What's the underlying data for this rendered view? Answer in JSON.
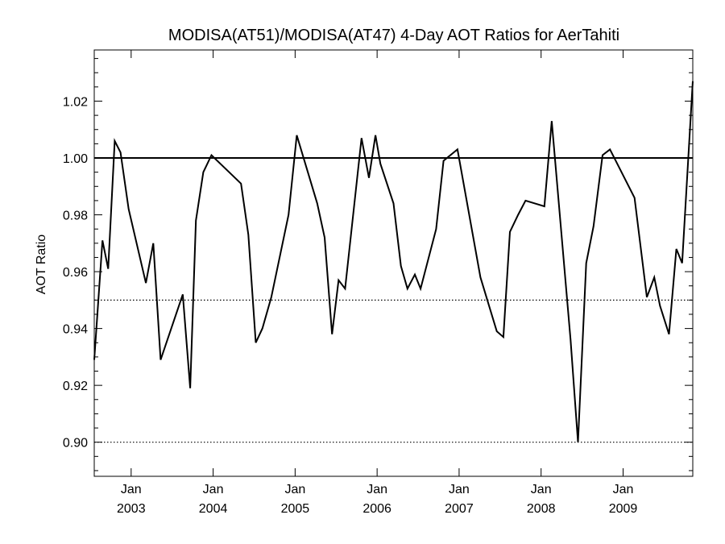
{
  "chart_data": {
    "type": "line",
    "title": "MODISA(AT51)/MODISA(AT47) 4-Day AOT Ratios for AerTahiti",
    "xlabel": "",
    "ylabel": "AOT Ratio",
    "xlim": [
      2002.55,
      2009.85
    ],
    "ylim": [
      0.888,
      1.038
    ],
    "y_ticks": [
      {
        "value": 0.9,
        "label": "0.90"
      },
      {
        "value": 0.92,
        "label": "0.92"
      },
      {
        "value": 0.94,
        "label": "0.94"
      },
      {
        "value": 0.96,
        "label": "0.96"
      },
      {
        "value": 0.98,
        "label": "0.98"
      },
      {
        "value": 1.0,
        "label": "1.00"
      },
      {
        "value": 1.02,
        "label": "1.02"
      }
    ],
    "x_ticks": [
      {
        "value": 2003,
        "month": "Jan",
        "year": "2003"
      },
      {
        "value": 2004,
        "month": "Jan",
        "year": "2004"
      },
      {
        "value": 2005,
        "month": "Jan",
        "year": "2005"
      },
      {
        "value": 2006,
        "month": "Jan",
        "year": "2006"
      },
      {
        "value": 2007,
        "month": "Jan",
        "year": "2007"
      },
      {
        "value": 2008,
        "month": "Jan",
        "year": "2008"
      },
      {
        "value": 2009,
        "month": "Jan",
        "year": "2009"
      }
    ],
    "reference_lines": [
      {
        "y": 1.0,
        "style": "solid"
      },
      {
        "y": 0.95,
        "style": "dotted"
      },
      {
        "y": 0.9,
        "style": "dotted"
      }
    ],
    "grid": false,
    "series": [
      {
        "x": [
          2002.55,
          2002.65,
          2002.72,
          2002.8,
          2002.87,
          2002.97,
          2003.18,
          2003.27,
          2003.36,
          2003.63,
          2003.72,
          2003.79,
          2003.88,
          2003.98,
          2004.34,
          2004.43,
          2004.52,
          2004.6,
          2004.71,
          2004.92,
          2005.02,
          2005.27,
          2005.36,
          2005.45,
          2005.53,
          2005.61,
          2005.81,
          2005.9,
          2005.98,
          2006.04,
          2006.2,
          2006.29,
          2006.37,
          2006.46,
          2006.53,
          2006.72,
          2006.81,
          2006.98,
          2007.26,
          2007.46,
          2007.54,
          2007.62,
          2007.72,
          2007.81,
          2008.04,
          2008.13,
          2008.36,
          2008.45,
          2008.55,
          2008.64,
          2008.75,
          2008.84,
          2009.14,
          2009.29,
          2009.38,
          2009.45,
          2009.56,
          2009.65,
          2009.72,
          2009.85
        ],
        "values": [
          0.929,
          0.971,
          0.961,
          1.006,
          1.002,
          0.982,
          0.956,
          0.97,
          0.929,
          0.952,
          0.919,
          0.978,
          0.995,
          1.001,
          0.991,
          0.973,
          0.935,
          0.94,
          0.951,
          0.98,
          1.008,
          0.984,
          0.972,
          0.938,
          0.957,
          0.954,
          1.007,
          0.993,
          1.008,
          0.998,
          0.984,
          0.962,
          0.954,
          0.959,
          0.954,
          0.975,
          0.999,
          1.003,
          0.958,
          0.939,
          0.937,
          0.974,
          0.98,
          0.985,
          0.983,
          1.013,
          0.936,
          0.9,
          0.963,
          0.976,
          1.001,
          1.003,
          0.986,
          0.951,
          0.958,
          0.948,
          0.938,
          0.968,
          0.963,
          1.027
        ]
      }
    ]
  }
}
